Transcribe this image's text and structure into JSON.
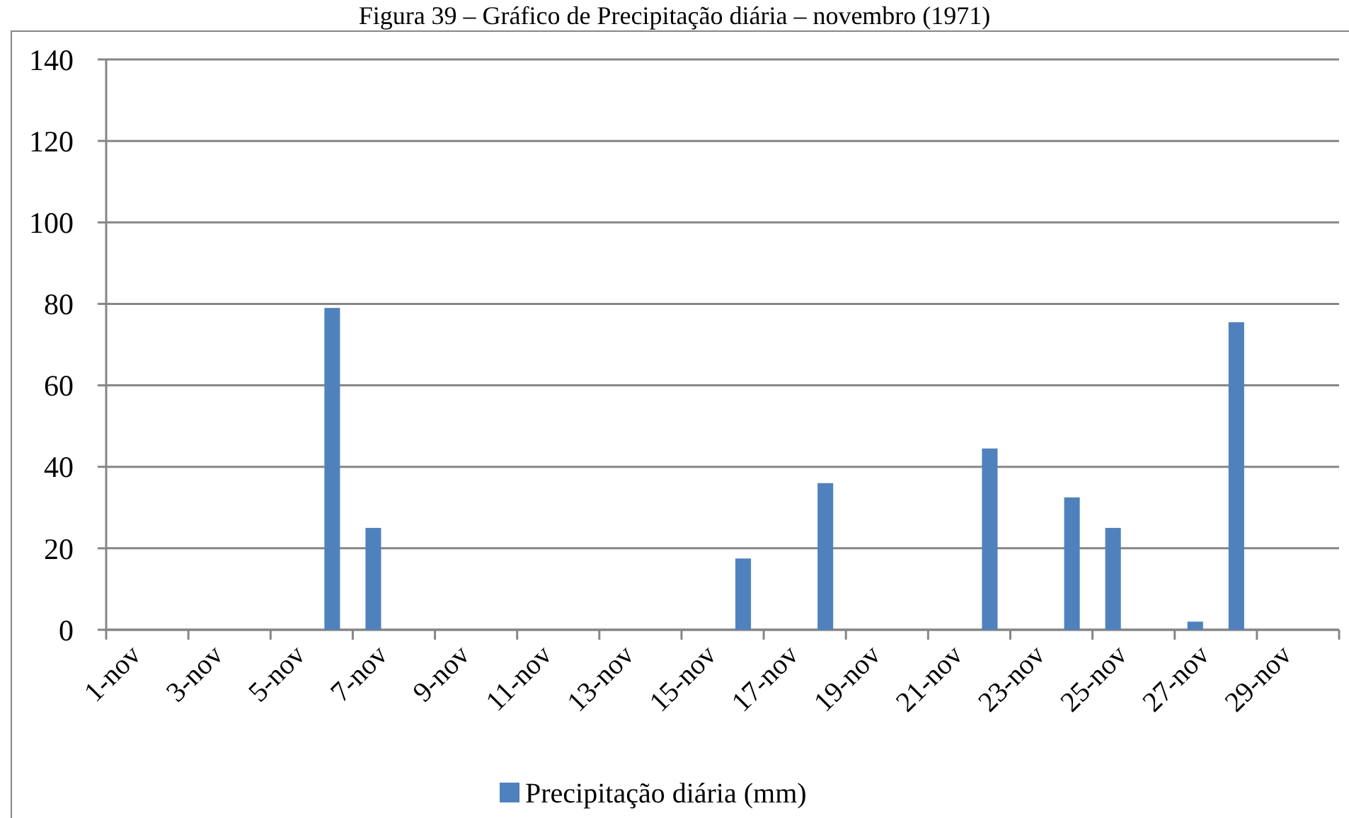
{
  "chart_data": {
    "type": "bar",
    "title": "Figura 39 – Gráfico de Precipitação diária – novembro (1971)",
    "categories": [
      "1-nov",
      null,
      "3-nov",
      null,
      "5-nov",
      null,
      "7-nov",
      null,
      "9-nov",
      null,
      "11-nov",
      null,
      "13-nov",
      null,
      "15-nov",
      null,
      "17-nov",
      null,
      "19-nov",
      null,
      "21-nov",
      null,
      "23-nov",
      null,
      "25-nov",
      null,
      "27-nov",
      null,
      "29-nov",
      null
    ],
    "series": [
      {
        "name": "Precipitação diária (mm)",
        "color": "#4f81bd",
        "values": [
          0,
          0,
          0,
          0,
          0,
          79,
          25,
          0,
          0,
          0,
          0,
          0,
          0,
          0,
          0,
          17.5,
          0,
          36,
          0,
          0,
          0,
          44.5,
          0,
          32.5,
          25,
          0,
          2,
          75.5,
          0,
          0
        ]
      }
    ],
    "ylim": [
      0,
      140
    ],
    "yticks": [
      0,
      20,
      40,
      60,
      80,
      100,
      120,
      140
    ],
    "grid": "y",
    "legend": "bottom"
  }
}
